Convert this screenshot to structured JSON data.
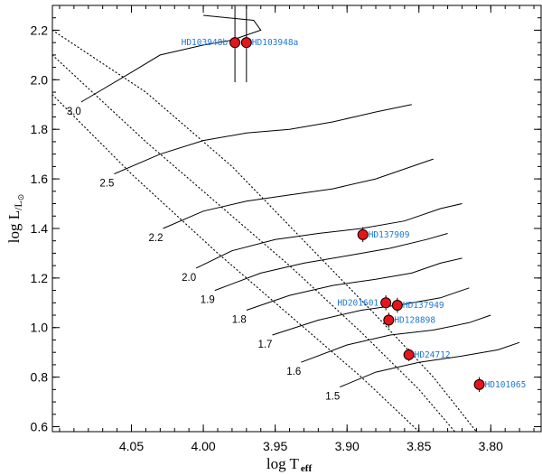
{
  "chart_data": {
    "type": "scatter",
    "title": "",
    "xlabel": "log T",
    "xlabel_subscript": "eff",
    "ylabel": "log L",
    "ylabel_subscript": "/L",
    "ylabel_sun_symbol": "⊙",
    "xlim": [
      4.105,
      3.765
    ],
    "ylim": [
      0.58,
      2.3
    ],
    "x_ticks": [
      4.05,
      4.0,
      3.95,
      3.9,
      3.85,
      3.8
    ],
    "x_tick_labels": [
      "4.05",
      "4.00",
      "3.95",
      "3.90",
      "3.85",
      "3.80"
    ],
    "y_ticks": [
      0.6,
      0.8,
      1.0,
      1.2,
      1.4,
      1.6,
      1.8,
      2.0,
      2.2
    ],
    "y_tick_labels": [
      "0.6",
      "0.8",
      "1.0",
      "1.2",
      "1.4",
      "1.6",
      "1.8",
      "2.0",
      "2.2"
    ],
    "stars": [
      {
        "name": "HD103948b",
        "logT": 3.978,
        "logL": 2.15,
        "dL": 0,
        "dT": 0,
        "label_side": "left"
      },
      {
        "name": "HD103948a",
        "logT": 3.97,
        "logL": 2.15,
        "dL": 0,
        "dT": 0,
        "label_side": "right"
      },
      {
        "name": "HD137909",
        "logT": 3.889,
        "logL": 1.375,
        "dL": 0.03,
        "dT": 0,
        "label_side": "right"
      },
      {
        "name": "HD201601",
        "logT": 3.873,
        "logL": 1.1,
        "dL": 0.03,
        "dT": 0,
        "label_side": "left"
      },
      {
        "name": "HD137949",
        "logT": 3.865,
        "logL": 1.09,
        "dL": 0.03,
        "dT": 0,
        "label_side": "right"
      },
      {
        "name": "HD128898",
        "logT": 3.871,
        "logL": 1.03,
        "dL": 0.03,
        "dT": 0,
        "label_side": "right"
      },
      {
        "name": "HD24712",
        "logT": 3.857,
        "logL": 0.89,
        "dL": 0.025,
        "dT": 0,
        "label_side": "right"
      },
      {
        "name": "HD101065",
        "logT": 3.808,
        "logL": 0.77,
        "dL": 0.03,
        "dT": 0,
        "label_side": "right"
      }
    ],
    "tracks": [
      {
        "mass": "3.0",
        "points": [
          [
            4.085,
            1.91
          ],
          [
            4.05,
            2.03
          ],
          [
            4.03,
            2.1
          ],
          [
            4.0,
            2.14
          ],
          [
            3.98,
            2.16
          ],
          [
            3.96,
            2.2
          ],
          [
            3.965,
            2.24
          ],
          [
            4.0,
            2.26
          ]
        ]
      },
      {
        "mass": "2.5",
        "points": [
          [
            4.062,
            1.62
          ],
          [
            4.03,
            1.7
          ],
          [
            4.0,
            1.755
          ],
          [
            3.97,
            1.785
          ],
          [
            3.94,
            1.8
          ],
          [
            3.91,
            1.83
          ],
          [
            3.88,
            1.87
          ],
          [
            3.855,
            1.9
          ]
        ]
      },
      {
        "mass": "2.2",
        "points": [
          [
            4.028,
            1.4
          ],
          [
            4.0,
            1.47
          ],
          [
            3.97,
            1.51
          ],
          [
            3.94,
            1.535
          ],
          [
            3.91,
            1.56
          ],
          [
            3.88,
            1.6
          ],
          [
            3.855,
            1.65
          ],
          [
            3.84,
            1.68
          ]
        ]
      },
      {
        "mass": "2.0",
        "points": [
          [
            4.005,
            1.24
          ],
          [
            3.98,
            1.31
          ],
          [
            3.95,
            1.355
          ],
          [
            3.92,
            1.38
          ],
          [
            3.89,
            1.4
          ],
          [
            3.86,
            1.43
          ],
          [
            3.835,
            1.48
          ],
          [
            3.82,
            1.5
          ]
        ]
      },
      {
        "mass": "1.9",
        "points": [
          [
            3.992,
            1.15
          ],
          [
            3.96,
            1.22
          ],
          [
            3.93,
            1.26
          ],
          [
            3.9,
            1.29
          ],
          [
            3.87,
            1.32
          ],
          [
            3.845,
            1.355
          ],
          [
            3.83,
            1.38
          ]
        ]
      },
      {
        "mass": "1.8",
        "points": [
          [
            3.97,
            1.07
          ],
          [
            3.94,
            1.13
          ],
          [
            3.91,
            1.17
          ],
          [
            3.88,
            1.195
          ],
          [
            3.855,
            1.22
          ],
          [
            3.835,
            1.26
          ],
          [
            3.82,
            1.28
          ]
        ]
      },
      {
        "mass": "1.7",
        "points": [
          [
            3.952,
            0.97
          ],
          [
            3.92,
            1.03
          ],
          [
            3.89,
            1.07
          ],
          [
            3.86,
            1.095
          ],
          [
            3.835,
            1.12
          ],
          [
            3.815,
            1.16
          ]
        ]
      },
      {
        "mass": "1.6",
        "points": [
          [
            3.932,
            0.86
          ],
          [
            3.9,
            0.93
          ],
          [
            3.87,
            0.97
          ],
          [
            3.84,
            0.99
          ],
          [
            3.815,
            1.02
          ],
          [
            3.8,
            1.05
          ]
        ]
      },
      {
        "mass": "1.5",
        "points": [
          [
            3.905,
            0.76
          ],
          [
            3.88,
            0.82
          ],
          [
            3.85,
            0.86
          ],
          [
            3.82,
            0.885
          ],
          [
            3.795,
            0.91
          ],
          [
            3.78,
            0.94
          ]
        ]
      }
    ],
    "isochrones": [
      [
        [
          4.105,
          2.2
        ],
        [
          4.04,
          1.95
        ],
        [
          3.98,
          1.65
        ],
        [
          3.93,
          1.35
        ],
        [
          3.88,
          1.05
        ],
        [
          3.84,
          0.8
        ],
        [
          3.81,
          0.58
        ]
      ],
      [
        [
          4.105,
          2.1
        ],
        [
          4.04,
          1.75
        ],
        [
          3.98,
          1.45
        ],
        [
          3.94,
          1.25
        ],
        [
          3.89,
          0.98
        ],
        [
          3.85,
          0.75
        ],
        [
          3.825,
          0.58
        ]
      ],
      [
        [
          4.105,
          1.94
        ],
        [
          4.05,
          1.62
        ],
        [
          3.99,
          1.3
        ],
        [
          3.94,
          1.05
        ],
        [
          3.89,
          0.8
        ],
        [
          3.85,
          0.58
        ]
      ]
    ]
  }
}
